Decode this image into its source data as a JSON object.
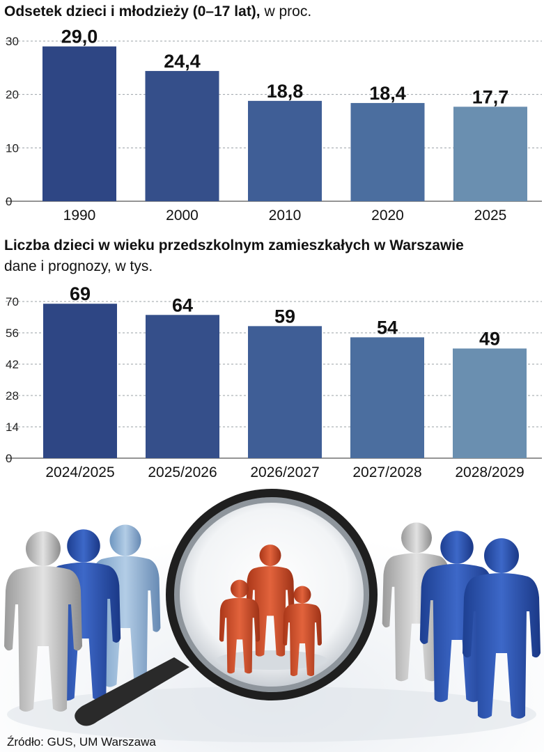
{
  "chart_data": [
    {
      "type": "bar",
      "title": "Odsetek dzieci i młodzieży (0–17 lat),",
      "title_suffix": " w proc.",
      "categories": [
        "1990",
        "2000",
        "2010",
        "2020",
        "2025"
      ],
      "values": [
        29.0,
        24.4,
        18.8,
        18.4,
        17.7
      ],
      "value_labels": [
        "29,0",
        "24,4",
        "18,8",
        "18,4",
        "17,7"
      ],
      "yticks": [
        "0",
        "10",
        "20",
        "30"
      ],
      "ylim": [
        0,
        30
      ],
      "grid": true,
      "colors": [
        "#2e4684",
        "#354f8a",
        "#3f5e96",
        "#4b6e9f",
        "#6a8fb0"
      ]
    },
    {
      "type": "bar",
      "title": "Liczba dzieci w wieku przedszkolnym zamieszkałych w Warszawie",
      "subtitle": "dane i prognozy, w tys.",
      "categories": [
        "2024/2025",
        "2025/2026",
        "2026/2027",
        "2027/2028",
        "2028/2029"
      ],
      "values": [
        69,
        64,
        59,
        54,
        49
      ],
      "value_labels": [
        "69",
        "64",
        "59",
        "54",
        "49"
      ],
      "yticks": [
        "0",
        "14",
        "28",
        "42",
        "56",
        "70"
      ],
      "ylim": [
        0,
        70
      ],
      "grid": true,
      "colors": [
        "#2e4684",
        "#354f8a",
        "#3f5e96",
        "#4b6e9f",
        "#6a8fb0"
      ]
    }
  ],
  "footer": {
    "source": "Źródło: GUS, UM Warszawa"
  }
}
